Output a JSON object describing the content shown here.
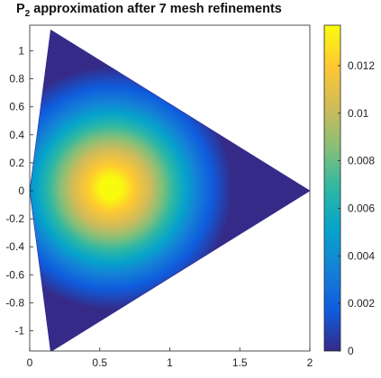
{
  "chart_data": {
    "type": "heatmap",
    "title": {
      "prefix": "P",
      "subscript": "2",
      "rest": " approximation after 7 mesh refinements"
    },
    "xlim": [
      0,
      2
    ],
    "ylim": [
      -1.2,
      1.2
    ],
    "x_ticks": [
      0,
      0.5,
      1,
      1.5,
      2
    ],
    "x_tick_labels": [
      "0",
      "0.5",
      "1",
      "1.5",
      "2"
    ],
    "y_ticks": [
      1,
      0.8,
      0.6,
      0.4,
      0.2,
      0,
      -0.2,
      -0.4,
      -0.6,
      -0.8,
      -1
    ],
    "y_tick_labels": [
      "1",
      "0.8",
      "0.6",
      "0.4",
      "0.2",
      "0",
      "-0.2",
      "-0.4",
      "-0.6",
      "-0.8",
      "-1"
    ],
    "domain_vertices": [
      [
        0.15,
        1.15
      ],
      [
        2.0,
        0.0
      ],
      [
        0.15,
        -1.15
      ],
      [
        0.0,
        0.0
      ]
    ],
    "field_peak": {
      "x": 0.58,
      "y": 0.02,
      "value": 0.0135
    },
    "colorbar": {
      "limits": [
        0,
        0.0137
      ],
      "ticks": [
        0,
        0.002,
        0.004,
        0.006,
        0.008,
        0.01,
        0.012
      ],
      "tick_labels": [
        "0",
        "0.002",
        "0.004",
        "0.006",
        "0.008",
        "0.01",
        "0.012"
      ],
      "colormap": "parula",
      "colors": [
        "#352a87",
        "#0f5cdd",
        "#1481d6",
        "#06a4ca",
        "#2eb7a4",
        "#87bf77",
        "#d1bb59",
        "#fec832",
        "#f9fb0e"
      ]
    },
    "grid": false,
    "legend": "none"
  }
}
